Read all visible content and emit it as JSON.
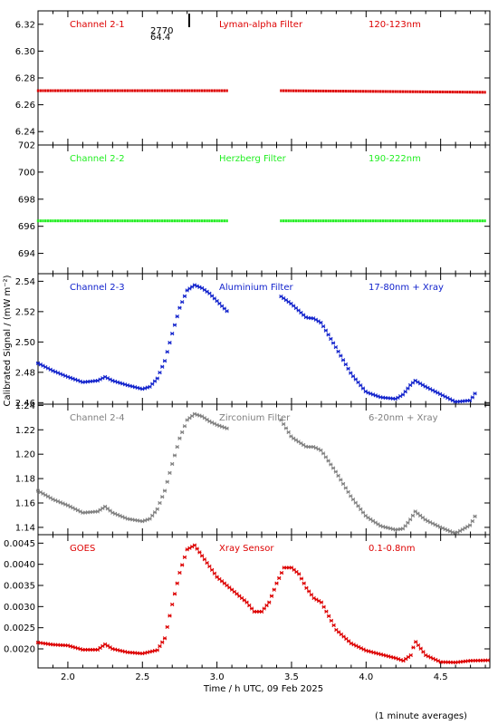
{
  "figure": {
    "ylabel": "Calibrated Signal / (mW m⁻²)",
    "xlabel": "Time / h UTC, 09 Feb 2025",
    "footnote": "(1 minute averages)",
    "marker": {
      "line1": "2770",
      "line2": "64.4"
    }
  },
  "chart_data": [
    {
      "type": "scatter",
      "channel": "Channel 2-1",
      "filter": "Lyman-alpha Filter",
      "band": "120-123nm",
      "color": "#dd0000",
      "ylim": [
        6.23,
        6.33
      ],
      "yticks": [
        "6.24",
        "6.26",
        "6.28",
        "6.30",
        "6.32"
      ],
      "xlim": [
        1.8,
        4.83
      ],
      "series": [
        {
          "x": [
            1.8,
            3.07
          ],
          "y": [
            6.2705,
            6.2705
          ]
        },
        {
          "x": [
            3.43,
            4.8
          ],
          "y": [
            6.2705,
            6.2693
          ]
        }
      ]
    },
    {
      "type": "scatter",
      "channel": "Channel 2-2",
      "filter": "Herzberg Filter",
      "band": "190-222nm",
      "color": "#22ee22",
      "ylim": [
        692.5,
        702
      ],
      "yticks": [
        "694",
        "696",
        "698",
        "700",
        "702"
      ],
      "xlim": [
        1.8,
        4.83
      ],
      "series": [
        {
          "x": [
            1.8,
            3.07
          ],
          "y": [
            696.4,
            696.4
          ]
        },
        {
          "x": [
            3.43,
            4.8
          ],
          "y": [
            696.4,
            696.4
          ]
        }
      ]
    },
    {
      "type": "scatter",
      "channel": "Channel 2-3",
      "filter": "Aluminium Filter",
      "band": "17-80nm + Xray",
      "color": "#1122cc",
      "ylim": [
        2.459,
        2.545
      ],
      "yticks": [
        "2.46",
        "2.48",
        "2.50",
        "2.52",
        "2.54"
      ],
      "xlim": [
        1.8,
        4.83
      ],
      "series": [
        {
          "x": [
            1.8,
            1.9,
            2.0,
            2.1,
            2.2,
            2.25,
            2.3,
            2.4,
            2.5,
            2.55,
            2.6,
            2.65,
            2.7,
            2.75,
            2.8,
            2.85,
            2.9,
            2.95,
            3.0,
            3.07
          ],
          "y": [
            2.486,
            2.481,
            2.477,
            2.4735,
            2.4745,
            2.477,
            2.4745,
            2.4715,
            2.469,
            2.4705,
            2.476,
            2.4875,
            2.5055,
            2.5225,
            2.534,
            2.5375,
            2.5355,
            2.532,
            2.527,
            2.52
          ]
        },
        {
          "x": [
            3.43,
            3.5,
            3.6,
            3.65,
            3.7,
            3.8,
            3.9,
            4.0,
            4.1,
            4.2,
            4.25,
            4.3,
            4.33,
            4.4,
            4.5,
            4.6,
            4.7,
            4.73
          ],
          "y": [
            2.53,
            2.525,
            2.516,
            2.5155,
            2.5125,
            2.496,
            2.479,
            2.467,
            2.4635,
            2.4625,
            2.4655,
            2.472,
            2.4745,
            2.4705,
            2.4655,
            2.4605,
            2.4615,
            2.466
          ]
        }
      ]
    },
    {
      "type": "scatter",
      "channel": "Channel 2-4",
      "filter": "Zirconium Filter",
      "band": "6-20nm + Xray",
      "color": "#808080",
      "ylim": [
        1.134,
        1.241
      ],
      "yticks": [
        "1.14",
        "1.16",
        "1.18",
        "1.20",
        "1.22",
        "1.24"
      ],
      "xlim": [
        1.8,
        4.83
      ],
      "series": [
        {
          "x": [
            1.8,
            1.9,
            2.0,
            2.1,
            2.2,
            2.25,
            2.3,
            2.4,
            2.5,
            2.55,
            2.6,
            2.65,
            2.7,
            2.75,
            2.8,
            2.85,
            2.9,
            2.95,
            3.0,
            3.07
          ],
          "y": [
            1.17,
            1.163,
            1.158,
            1.152,
            1.153,
            1.157,
            1.152,
            1.147,
            1.145,
            1.147,
            1.155,
            1.17,
            1.192,
            1.213,
            1.228,
            1.233,
            1.231,
            1.227,
            1.224,
            1.221
          ]
        },
        {
          "x": [
            3.43,
            3.5,
            3.6,
            3.65,
            3.7,
            3.8,
            3.9,
            4.0,
            4.1,
            4.2,
            4.25,
            4.3,
            4.33,
            4.4,
            4.5,
            4.6,
            4.7,
            4.73
          ],
          "y": [
            1.228,
            1.214,
            1.206,
            1.206,
            1.203,
            1.185,
            1.165,
            1.149,
            1.141,
            1.138,
            1.139,
            1.147,
            1.153,
            1.146,
            1.14,
            1.135,
            1.142,
            1.149
          ]
        }
      ]
    },
    {
      "type": "scatter",
      "channel": "GOES",
      "filter": "Xray Sensor",
      "band": "0.1-0.8nm",
      "color": "#dd0000",
      "ylim": [
        0.00155,
        0.0047
      ],
      "yticks": [
        "0.0020",
        "0.0025",
        "0.0030",
        "0.0035",
        "0.0040",
        "0.0045"
      ],
      "xlim": [
        1.8,
        4.83
      ],
      "series": [
        {
          "x": [
            1.8,
            1.9,
            2.0,
            2.1,
            2.2,
            2.25,
            2.3,
            2.4,
            2.5,
            2.6,
            2.65,
            2.7,
            2.75,
            2.8,
            2.85,
            2.9,
            3.0,
            3.1,
            3.2,
            3.25,
            3.3,
            3.35,
            3.4,
            3.45,
            3.5,
            3.55,
            3.6,
            3.65,
            3.7,
            3.8,
            3.9,
            4.0,
            4.1,
            4.2,
            4.25,
            4.3,
            4.33,
            4.4,
            4.5,
            4.6,
            4.7,
            4.83
          ],
          "y": [
            0.00215,
            0.0021,
            0.00208,
            0.00198,
            0.00198,
            0.00211,
            0.002,
            0.00192,
            0.00189,
            0.00197,
            0.00225,
            0.00305,
            0.0038,
            0.00435,
            0.00445,
            0.0042,
            0.0037,
            0.0034,
            0.0031,
            0.00288,
            0.00288,
            0.0031,
            0.00355,
            0.00392,
            0.00392,
            0.00377,
            0.00344,
            0.0032,
            0.0031,
            0.00245,
            0.00213,
            0.00196,
            0.00187,
            0.00178,
            0.00172,
            0.00185,
            0.00218,
            0.00185,
            0.00169,
            0.00168,
            0.00172,
            0.00173
          ]
        }
      ]
    }
  ]
}
